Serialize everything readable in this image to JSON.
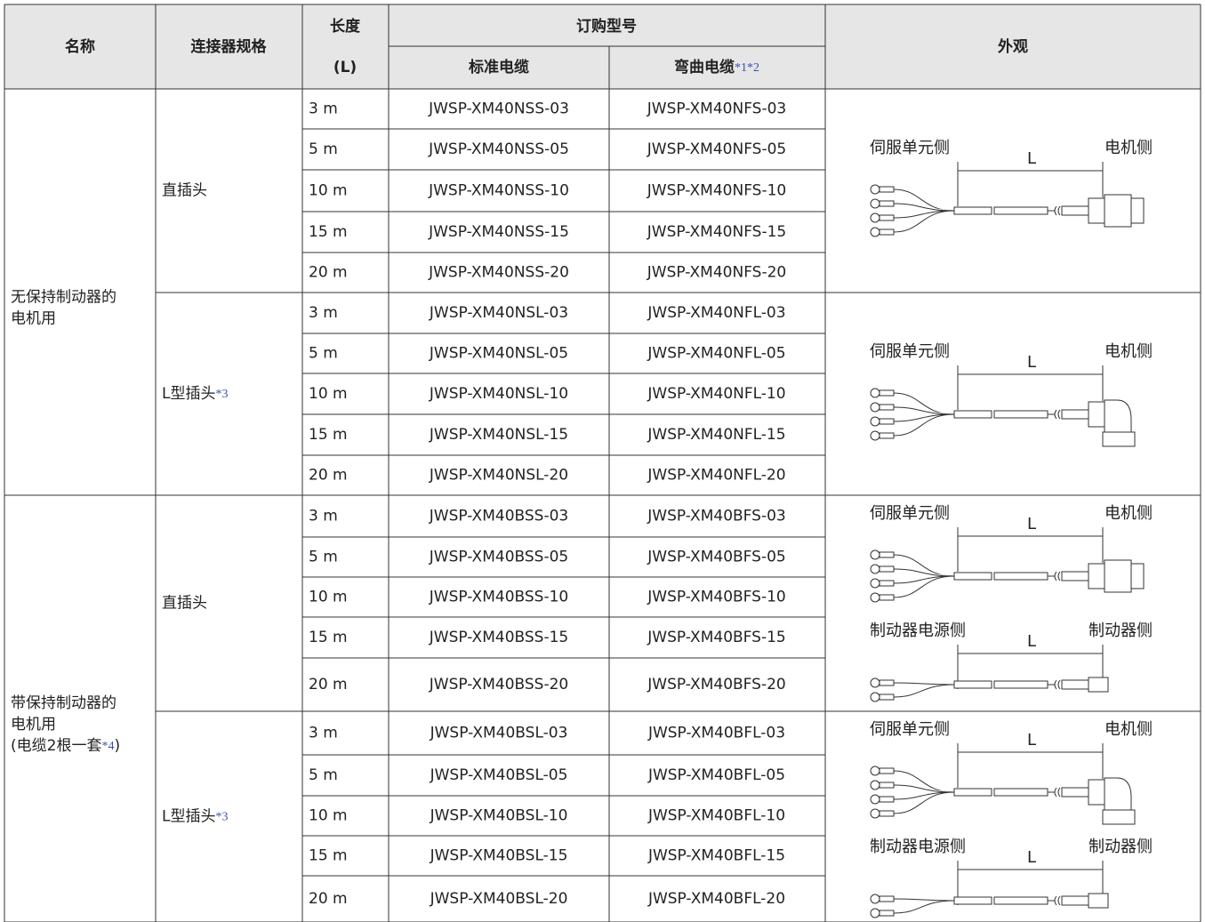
{
  "header": {
    "name": "名称",
    "connector": "连接器规格",
    "length": [
      "长度",
      "(L)"
    ],
    "order": "订购型号",
    "standard": "标准电缆",
    "bend": "弯曲电缆",
    "bend_note": "*1*2",
    "appearance": "外观"
  },
  "groups": [
    {
      "name_lines": [
        "无保持制动器的",
        "电机用"
      ],
      "name_tail": null,
      "connectors": [
        {
          "label": "直插头",
          "note": null,
          "rows": [
            [
              "3 m",
              "JWSP-XM40NSS-03",
              "JWSP-XM40NFS-03"
            ],
            [
              "5 m",
              "JWSP-XM40NSS-05",
              "JWSP-XM40NFS-05"
            ],
            [
              "10 m",
              "JWSP-XM40NSS-10",
              "JWSP-XM40NFS-10"
            ],
            [
              "15 m",
              "JWSP-XM40NSS-15",
              "JWSP-XM40NFS-15"
            ],
            [
              "20 m",
              "JWSP-XM40NSS-20",
              "JWSP-XM40NFS-20"
            ]
          ],
          "figures": [
            {
              "left": "伺服单元侧",
              "right": "电机侧",
              "dim": "L"
            }
          ]
        },
        {
          "label": "L型插头",
          "note": "*3",
          "rows": [
            [
              "3 m",
              "JWSP-XM40NSL-03",
              "JWSP-XM40NFL-03"
            ],
            [
              "5 m",
              "JWSP-XM40NSL-05",
              "JWSP-XM40NFL-05"
            ],
            [
              "10 m",
              "JWSP-XM40NSL-10",
              "JWSP-XM40NFL-10"
            ],
            [
              "15 m",
              "JWSP-XM40NSL-15",
              "JWSP-XM40NFL-15"
            ],
            [
              "20 m",
              "JWSP-XM40NSL-20",
              "JWSP-XM40NFL-20"
            ]
          ],
          "figures": [
            {
              "left": "伺服单元侧",
              "right": "电机侧",
              "dim": "L"
            }
          ]
        }
      ]
    },
    {
      "name_lines": [
        "带保持制动器的",
        "电机用"
      ],
      "name_tail": [
        "(电缆2根一套",
        "*4",
        ")"
      ],
      "connectors": [
        {
          "label": "直插头",
          "note": null,
          "rows": [
            [
              "3 m",
              "JWSP-XM40BSS-03",
              "JWSP-XM40BFS-03"
            ],
            [
              "5 m",
              "JWSP-XM40BSS-05",
              "JWSP-XM40BFS-05"
            ],
            [
              "10 m",
              "JWSP-XM40BSS-10",
              "JWSP-XM40BFS-10"
            ],
            [
              "15 m",
              "JWSP-XM40BSS-15",
              "JWSP-XM40BFS-15"
            ],
            [
              "20 m",
              "JWSP-XM40BSS-20",
              "JWSP-XM40BFS-20"
            ]
          ],
          "figures": [
            {
              "left": "伺服单元侧",
              "right": "电机侧",
              "dim": "L"
            },
            {
              "left": "制动器电源侧",
              "right": "制动器侧",
              "dim": "L"
            }
          ]
        },
        {
          "label": "L型插头",
          "note": "*3",
          "rows": [
            [
              "3 m",
              "JWSP-XM40BSL-03",
              "JWSP-XM40BFL-03"
            ],
            [
              "5 m",
              "JWSP-XM40BSL-05",
              "JWSP-XM40BFL-05"
            ],
            [
              "10 m",
              "JWSP-XM40BSL-10",
              "JWSP-XM40BFL-10"
            ],
            [
              "15 m",
              "JWSP-XM40BSL-15",
              "JWSP-XM40BFL-15"
            ],
            [
              "20 m",
              "JWSP-XM40BSL-20",
              "JWSP-XM40BFL-20"
            ]
          ],
          "figures": [
            {
              "left": "伺服单元侧",
              "right": "电机侧",
              "dim": "L"
            },
            {
              "left": "制动器电源侧",
              "right": "制动器侧",
              "dim": "L"
            }
          ]
        }
      ]
    }
  ]
}
